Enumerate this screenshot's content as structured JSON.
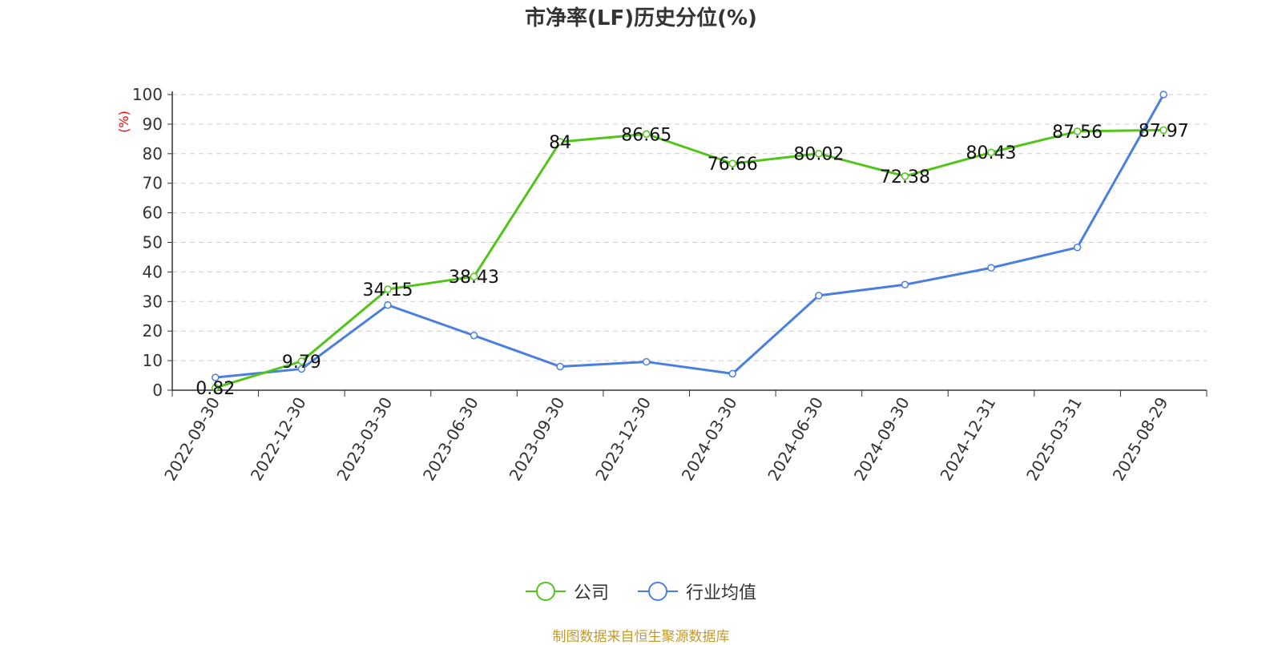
{
  "chart_data": {
    "type": "line",
    "title": "市净率(LF)历史分位(%)",
    "ylabel": "(%)",
    "xlabel": "",
    "ylim": [
      0,
      100
    ],
    "yticks": [
      0,
      10,
      20,
      30,
      40,
      50,
      60,
      70,
      80,
      90,
      100
    ],
    "grid": true,
    "legend_position": "bottom",
    "categories": [
      "2022-09-30",
      "2022-12-30",
      "2023-03-30",
      "2023-06-30",
      "2023-09-30",
      "2023-12-30",
      "2024-03-30",
      "2024-06-30",
      "2024-09-30",
      "2024-12-31",
      "2025-03-31",
      "2025-08-29"
    ],
    "series": [
      {
        "name": "公司",
        "color": "#52c41a",
        "show_labels": true,
        "values": [
          0.82,
          9.79,
          34.15,
          38.43,
          84,
          86.65,
          76.66,
          80.02,
          72.38,
          80.43,
          87.56,
          87.97
        ]
      },
      {
        "name": "行业均值",
        "color": "#4a7fde",
        "show_labels": false,
        "values": [
          4.3,
          7.2,
          28.8,
          18.5,
          8.0,
          9.6,
          5.6,
          32.0,
          35.7,
          41.4,
          48.3,
          100
        ]
      }
    ],
    "ylabel_color": "#ff0000",
    "source_note": "制图数据来自恒生聚源数据库"
  }
}
